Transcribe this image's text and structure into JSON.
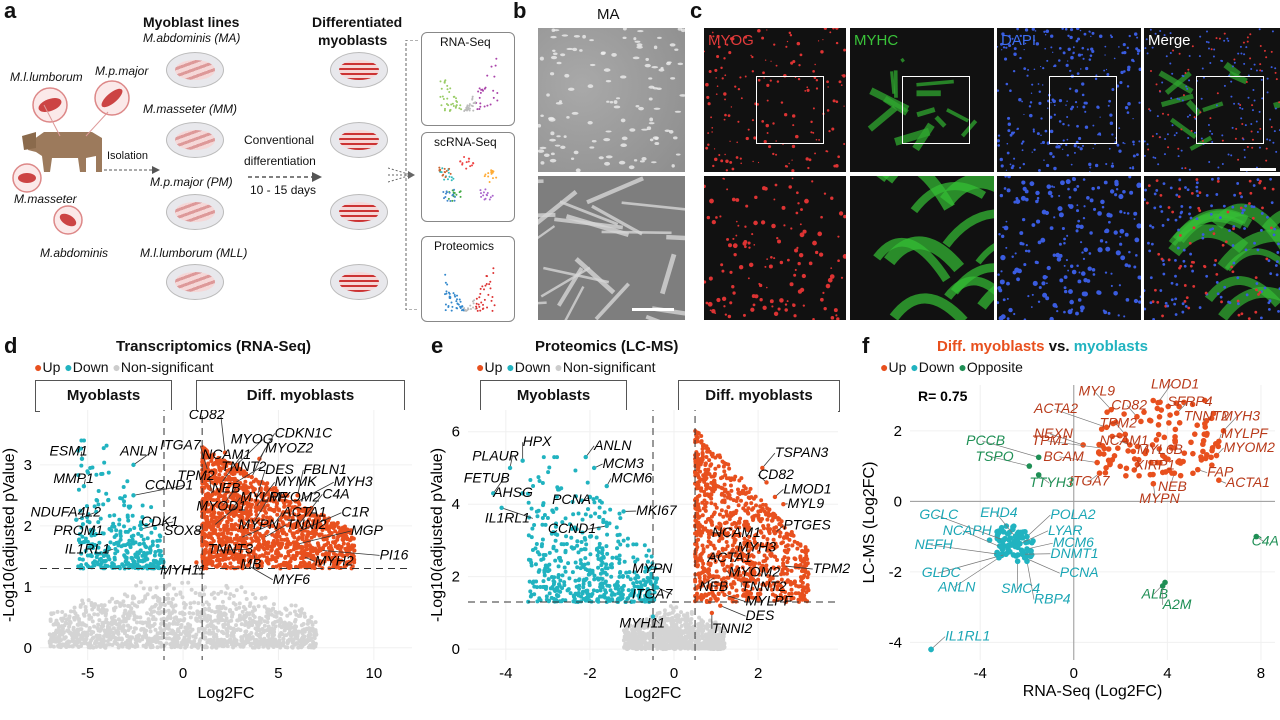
{
  "panels": {
    "a": "a",
    "b": "b",
    "c": "c",
    "d": "d",
    "e": "e",
    "f": "f"
  },
  "panel_a": {
    "myoblast_lines": "Myoblast lines",
    "differentiated": [
      "Differentiated",
      "myoblasts"
    ],
    "lines": [
      "M.abdominis (MA)",
      "M.masseter (MM)",
      "M.p.major (PM)",
      "M.l.lumborum (MLL)"
    ],
    "muscles": [
      "M.l.lumborum",
      "M.p.major",
      "M.masseter",
      "M.abdominis"
    ],
    "isolation": "Isolation",
    "conventional": [
      "Conventional",
      "differentiation"
    ],
    "days": "10 - 15 days",
    "assays": [
      "RNA-Seq",
      "scRNA-Seq",
      "Proteomics"
    ]
  },
  "panel_b": {
    "title": "MA"
  },
  "panel_c": {
    "channels": [
      "MYOG",
      "MYHC",
      "DAPI",
      "Merge"
    ],
    "colors": [
      "#e23b3b",
      "#3ac43a",
      "#3d6df0",
      "#ffffff"
    ]
  },
  "panel_d": {
    "title": "Transcriptomics (RNA-Seq)",
    "legend": [
      "Up",
      "Down",
      "Non-significant"
    ],
    "left_box": "Myoblasts",
    "right_box": "Diff. myoblasts",
    "xlabel": "Log2FC",
    "ylabel": "-Log10(adjusted pValue)",
    "xticks": [
      "-5",
      "0",
      "5",
      "10"
    ],
    "yticks": [
      "0",
      "1",
      "2",
      "3"
    ],
    "genes_down": [
      "ESM1",
      "ANLN",
      "MMP1",
      "CCND1",
      "NDUFA4L2",
      "PROM1",
      "CDK1",
      "IL1RL1"
    ],
    "genes_up": [
      "CD82",
      "MYOG",
      "CDKN1C",
      "ITGA7",
      "NCAM1",
      "MYOZ2",
      "TNNT2",
      "DES",
      "FBLN1",
      "TPM2",
      "NEB",
      "MYMK",
      "MYH3",
      "MYLPF",
      "MYOM2",
      "C4A",
      "MYOD1",
      "ACTA1",
      "C1R",
      "SOX8",
      "MYPN",
      "TNNI2",
      "MGP",
      "TNNT3",
      "PI16",
      "MB",
      "MYH2",
      "MYH11",
      "MYF6"
    ]
  },
  "panel_e": {
    "title": "Proteomics (LC-MS)",
    "legend": [
      "Up",
      "Down",
      "Non-significant"
    ],
    "left_box": "Myoblasts",
    "right_box": "Diff. myoblasts",
    "xlabel": "Log2FC",
    "ylabel": "-Log10(adjusted pValue)",
    "xticks": [
      "-4",
      "-2",
      "0",
      "2"
    ],
    "yticks": [
      "0",
      "2",
      "4",
      "6"
    ],
    "genes_down": [
      "HPX",
      "ANLN",
      "PLAUR",
      "MCM3",
      "FETUB",
      "MCM6",
      "AHSG",
      "PCNA",
      "IL1RL1",
      "MKI67",
      "CCND1",
      "MYPN",
      "ITGA7",
      "MYH11"
    ],
    "genes_up": [
      "TSPAN3",
      "CD82",
      "LMOD1",
      "MYL9",
      "PTGES",
      "NCAM1",
      "MYH3",
      "ACTA1",
      "MYOM2",
      "TPM2",
      "NEB",
      "TNNT2",
      "MYLPF",
      "DES",
      "TNNI2"
    ]
  },
  "panel_f": {
    "title_part1": "Diff. myoblasts",
    "title_vs": "vs.",
    "title_part2": "myoblasts",
    "legend": [
      "Up",
      "Down",
      "Opposite"
    ],
    "r_value": "R= 0.75",
    "xlabel": "RNA-Seq (Log2FC)",
    "ylabel": "LC-MS (Log2FC)",
    "xticks": [
      "-4",
      "0",
      "4",
      "8"
    ],
    "yticks": [
      "-4",
      "-2",
      "0",
      "2"
    ],
    "genes_up": [
      "MYL9",
      "LMOD1",
      "CD82",
      "SFRP4",
      "ACTA2",
      "TNNT2",
      "TPM2",
      "MYH3",
      "NEXN",
      "TPM1",
      "NCAM1",
      "MYLPF",
      "MYL6B",
      "MYOM2",
      "BCAM",
      "XIRP1",
      "FAP",
      "ITGA7",
      "NEB",
      "ACTA1",
      "MYPN"
    ],
    "genes_down": [
      "GCLC",
      "EHD4",
      "POLA2",
      "NCAPH",
      "LYAR",
      "MCM6",
      "NEFH",
      "DNMT1",
      "GLDC",
      "PCNA",
      "ANLN",
      "SMC4",
      "RBP4",
      "IL1RL1"
    ],
    "genes_opposite": [
      "PCCB",
      "TSPO",
      "TTYH3",
      "C4A",
      "ALB",
      "A2M"
    ]
  },
  "colors": {
    "up": "#e8501e",
    "down": "#21b3c0",
    "ns": "#d4d4d4",
    "opposite": "#1f8f55",
    "up_text": "#b83a1a",
    "down_text": "#1aa6b5",
    "opp_text": "#1f8f55"
  }
}
